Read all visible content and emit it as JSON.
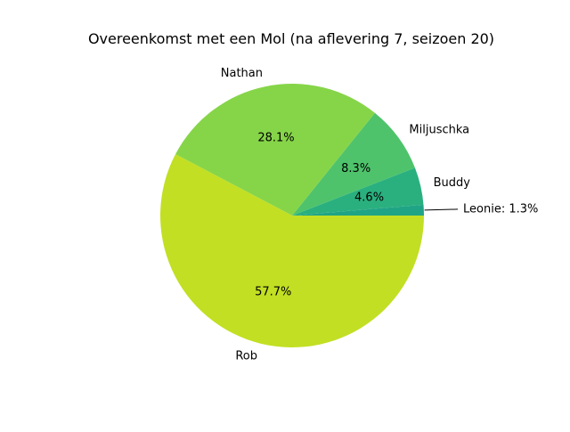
{
  "chart_data": {
    "type": "pie",
    "title": "Overeenkomst met een Mol (na aflevering 7, seizoen 20)",
    "slices": [
      {
        "label": "Leonie",
        "value": 1.3,
        "value_text": "Leonie: 1.3%",
        "color": "#20a486"
      },
      {
        "label": "Buddy",
        "value": 4.6,
        "value_text": "4.6%",
        "color": "#2ab07f"
      },
      {
        "label": "Miljuschka",
        "value": 8.3,
        "value_text": "8.3%",
        "color": "#4ec36b"
      },
      {
        "label": "Nathan",
        "value": 28.1,
        "value_text": "28.1%",
        "color": "#86d549"
      },
      {
        "label": "Rob",
        "value": 57.7,
        "value_text": "57.7%",
        "color": "#c2df23"
      }
    ]
  }
}
